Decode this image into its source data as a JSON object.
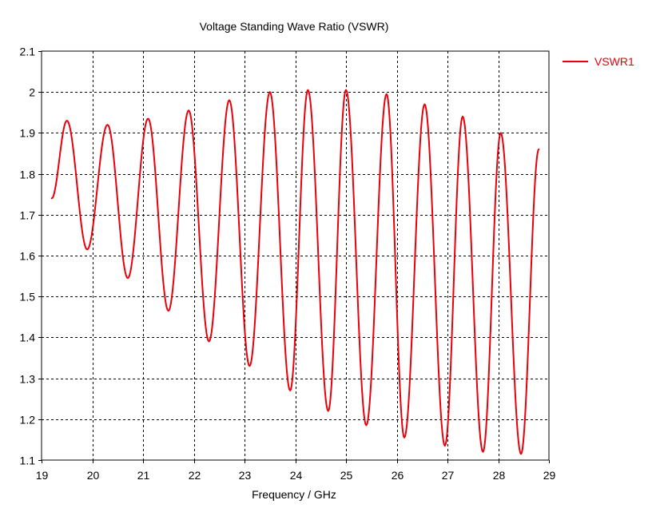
{
  "chart_data": {
    "type": "line",
    "title": "Voltage Standing Wave Ratio (VSWR)",
    "xlabel": "Frequency / GHz",
    "ylabel": "",
    "xlim": [
      19,
      29
    ],
    "ylim": [
      1.1,
      2.1
    ],
    "xticks": [
      "19",
      "20",
      "21",
      "22",
      "23",
      "24",
      "25",
      "26",
      "27",
      "28",
      "29"
    ],
    "yticks": [
      "1.1",
      "1.2",
      "1.3",
      "1.4",
      "1.5",
      "1.6",
      "1.7",
      "1.8",
      "1.9",
      "2",
      "2.1"
    ],
    "grid": true,
    "legend": {
      "position": "right",
      "entries": [
        "VSWR1"
      ]
    },
    "series": [
      {
        "name": "VSWR1",
        "color": "#e8000b",
        "points": [
          [
            19.2,
            1.74
          ],
          [
            19.5,
            1.93
          ],
          [
            19.9,
            1.615
          ],
          [
            20.3,
            1.92
          ],
          [
            20.7,
            1.545
          ],
          [
            21.1,
            1.935
          ],
          [
            21.5,
            1.465
          ],
          [
            21.9,
            1.955
          ],
          [
            22.3,
            1.39
          ],
          [
            22.7,
            1.98
          ],
          [
            23.1,
            1.33
          ],
          [
            23.5,
            2.0
          ],
          [
            23.9,
            1.27
          ],
          [
            24.25,
            2.005
          ],
          [
            24.65,
            1.22
          ],
          [
            25.0,
            2.005
          ],
          [
            25.4,
            1.185
          ],
          [
            25.8,
            1.995
          ],
          [
            26.15,
            1.155
          ],
          [
            26.55,
            1.97
          ],
          [
            26.95,
            1.135
          ],
          [
            27.3,
            1.94
          ],
          [
            27.7,
            1.12
          ],
          [
            28.05,
            1.9
          ],
          [
            28.45,
            1.115
          ],
          [
            28.8,
            1.86
          ]
        ]
      }
    ]
  }
}
